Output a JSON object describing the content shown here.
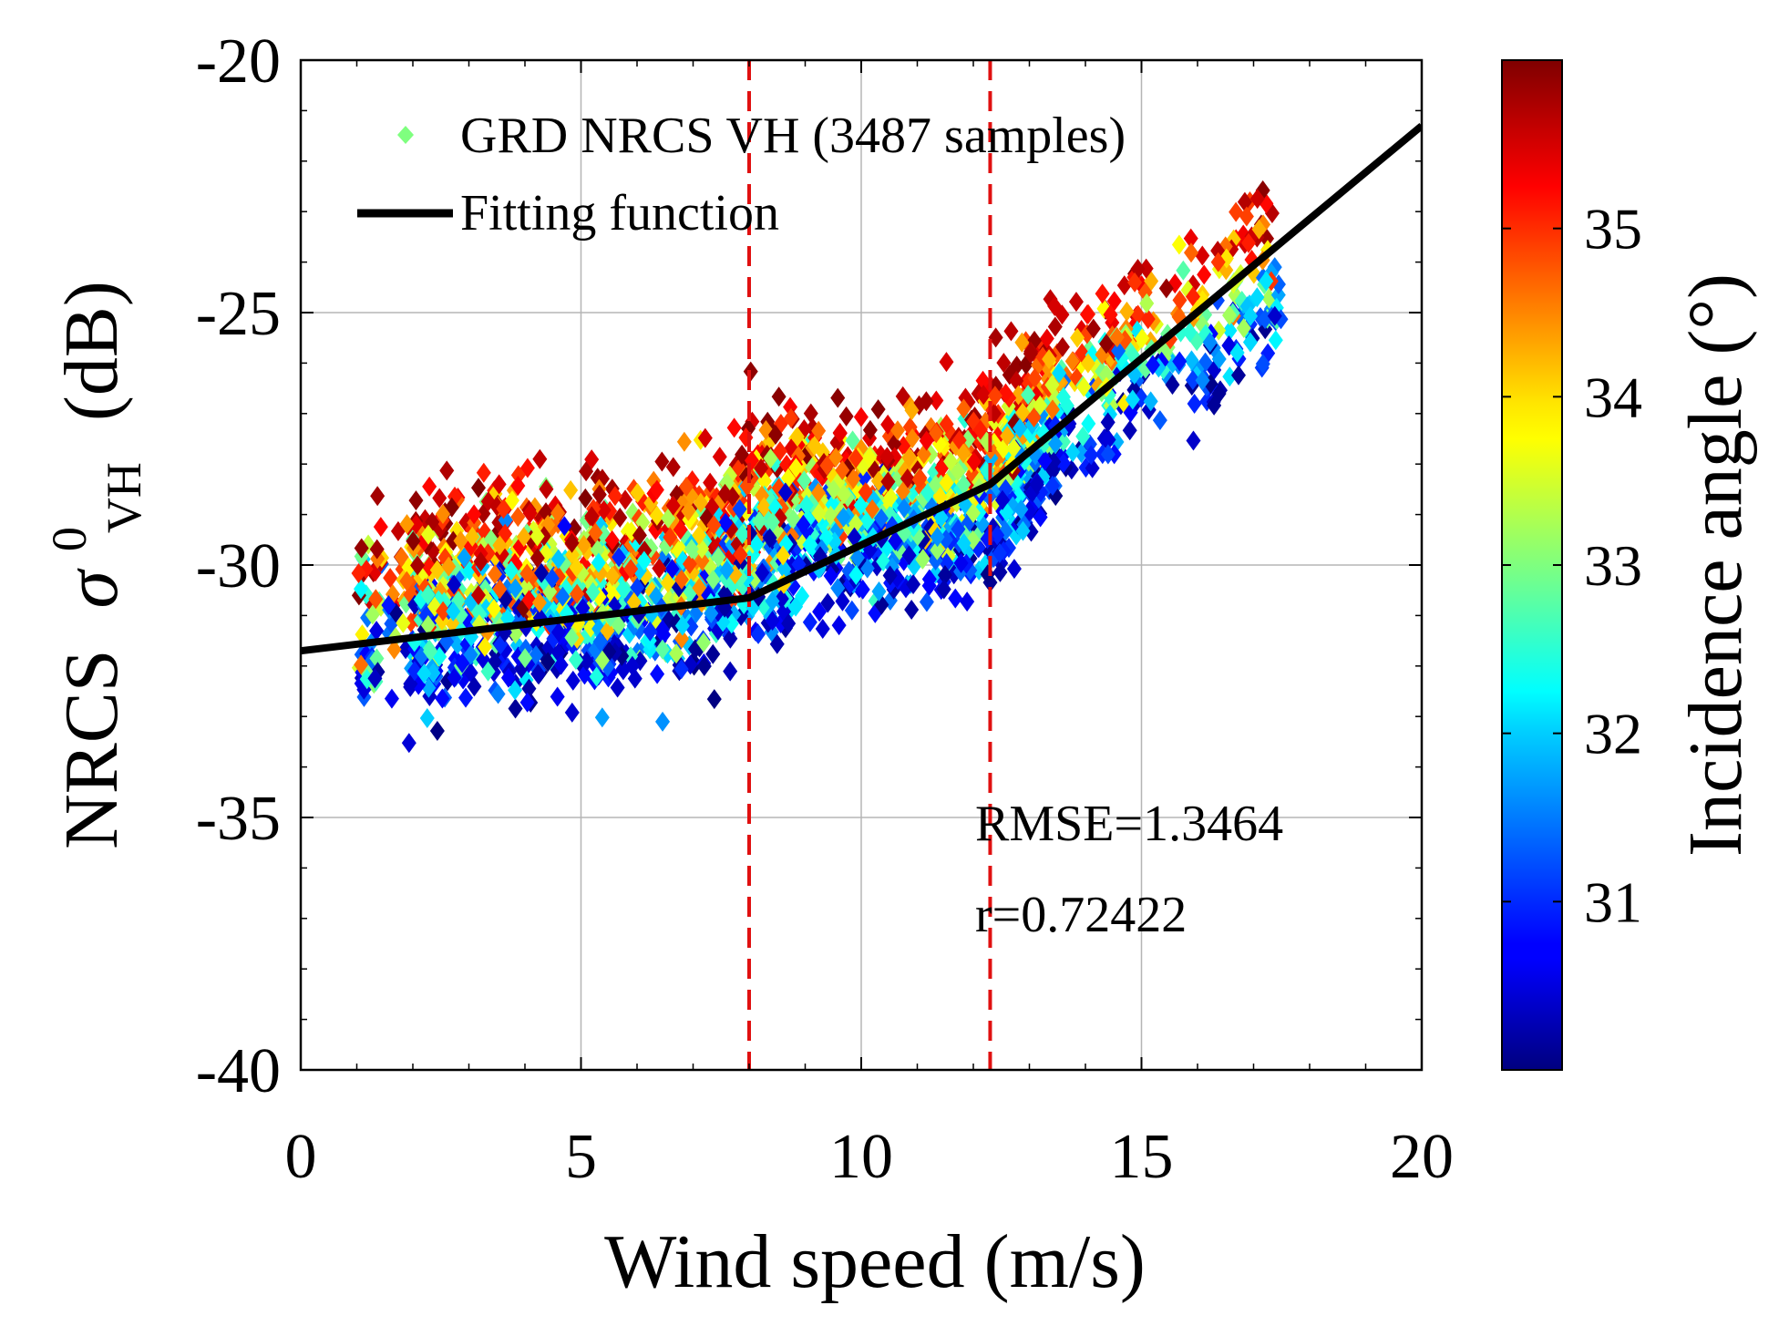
{
  "chart_data": {
    "type": "scatter",
    "xlabel": "Wind speed (m/s)",
    "ylabel": "NRCS",
    "ylabel_symbol": "σ",
    "ylabel_superscript": "0",
    "ylabel_subscript": "VH",
    "ylabel_unit": "(dB)",
    "xlim": [
      0,
      20
    ],
    "ylim": [
      -40,
      -20
    ],
    "xticks": [
      0,
      5,
      10,
      15,
      20
    ],
    "xtick_labels": [
      "0",
      "5",
      "10",
      "15",
      "20"
    ],
    "yticks": [
      -40,
      -35,
      -30,
      -25,
      -20
    ],
    "ytick_labels": [
      "-40",
      "-35",
      "-30",
      "-25",
      "-20"
    ],
    "grid": true,
    "legend": {
      "position": "top-left",
      "entries": [
        {
          "label": "GRD NRCS VH (3487 samples)",
          "marker": "diamond",
          "color": "#7fff7f"
        },
        {
          "label": "Fitting function",
          "marker": "line",
          "color": "#000000"
        }
      ]
    },
    "series": [
      {
        "name": "GRD NRCS VH (3487 samples)",
        "kind": "scatter",
        "n_samples": 3487,
        "color_variable": "Incidence angle",
        "trend": {
          "wind_speed": [
            1,
            3,
            5,
            7,
            8,
            9,
            10,
            11,
            12,
            12.5,
            13,
            14,
            15,
            16,
            17
          ],
          "nrcs_mean": [
            -31.0,
            -30.6,
            -30.4,
            -30.2,
            -29.5,
            -28.9,
            -28.9,
            -28.8,
            -28.6,
            -28.2,
            -27.4,
            -26.4,
            -25.8,
            -25.1,
            -24.4
          ]
        }
      },
      {
        "name": "Fitting function",
        "kind": "line",
        "x": [
          0,
          8,
          12.3,
          20
        ],
        "y": [
          -31.7,
          -30.65,
          -28.4,
          -21.3
        ]
      }
    ],
    "vertical_lines": [
      {
        "x": 8.0,
        "style": "dashed",
        "color": "#e01010"
      },
      {
        "x": 12.3,
        "style": "dashed",
        "color": "#e01010"
      }
    ],
    "annotations": [
      "RMSE=1.3464",
      "r=0.72422"
    ],
    "colorbar": {
      "label": "Incidence angle (°)",
      "range": [
        30.0,
        36.0
      ],
      "ticks": [
        31,
        32,
        33,
        34,
        35
      ],
      "tick_labels": [
        "31",
        "32",
        "33",
        "34",
        "35"
      ],
      "colormap": "jet"
    }
  }
}
